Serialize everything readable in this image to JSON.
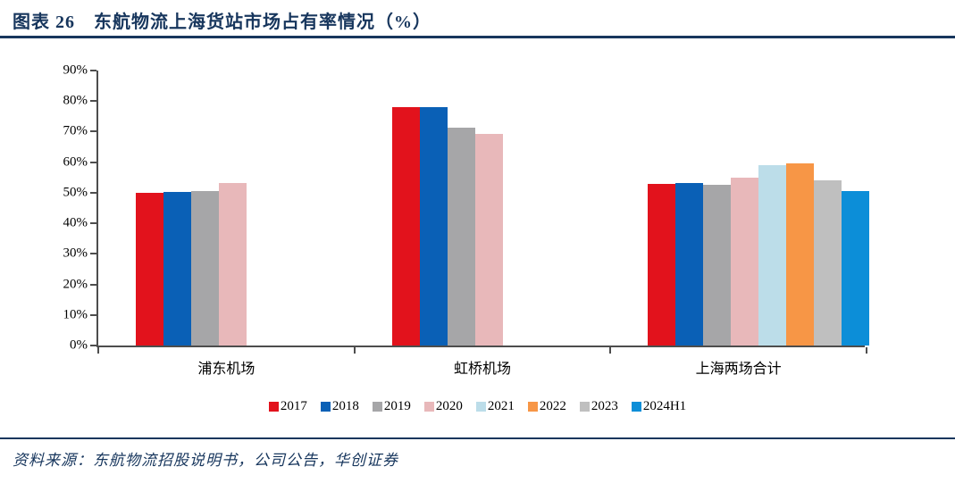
{
  "header": {
    "title": "图表 26　东航物流上海货站市场占有率情况（%）"
  },
  "source": {
    "label": "资料来源：东航物流招股说明书，公司公告，华创证券"
  },
  "colors": {
    "navy_accent": "#17365d",
    "axis_line": "#4d4d4d"
  },
  "chart_data": {
    "type": "bar",
    "title": "东航物流上海货站市场占有率情况（%）",
    "xlabel": "",
    "ylabel": "",
    "categories": [
      "浦东机场",
      "虹桥机场",
      "上海两场合计"
    ],
    "series": [
      {
        "name": "2017",
        "color": "#e2121c",
        "values": [
          50.0,
          78.1,
          52.9
        ]
      },
      {
        "name": "2018",
        "color": "#0a60b6",
        "values": [
          50.3,
          78.0,
          53.3
        ]
      },
      {
        "name": "2019",
        "color": "#a6a6a8",
        "values": [
          50.7,
          71.2,
          52.7
        ]
      },
      {
        "name": "2020",
        "color": "#e8b8ba",
        "values": [
          53.3,
          69.2,
          54.8
        ]
      },
      {
        "name": "2021",
        "color": "#bcdde9",
        "values": [
          null,
          null,
          59.0
        ]
      },
      {
        "name": "2022",
        "color": "#f79646",
        "values": [
          null,
          null,
          59.6
        ]
      },
      {
        "name": "2023",
        "color": "#bfbfbf",
        "values": [
          null,
          null,
          54.0
        ]
      },
      {
        "name": "2024H1",
        "color": "#0c8ed8",
        "values": [
          null,
          null,
          50.6
        ]
      }
    ],
    "ylim": [
      0,
      90
    ],
    "ytick_step": 10,
    "ytick_labels": [
      "0%",
      "10%",
      "20%",
      "30%",
      "40%",
      "50%",
      "60%",
      "70%",
      "80%",
      "90%"
    ],
    "grid": false,
    "legend_position": "bottom"
  }
}
